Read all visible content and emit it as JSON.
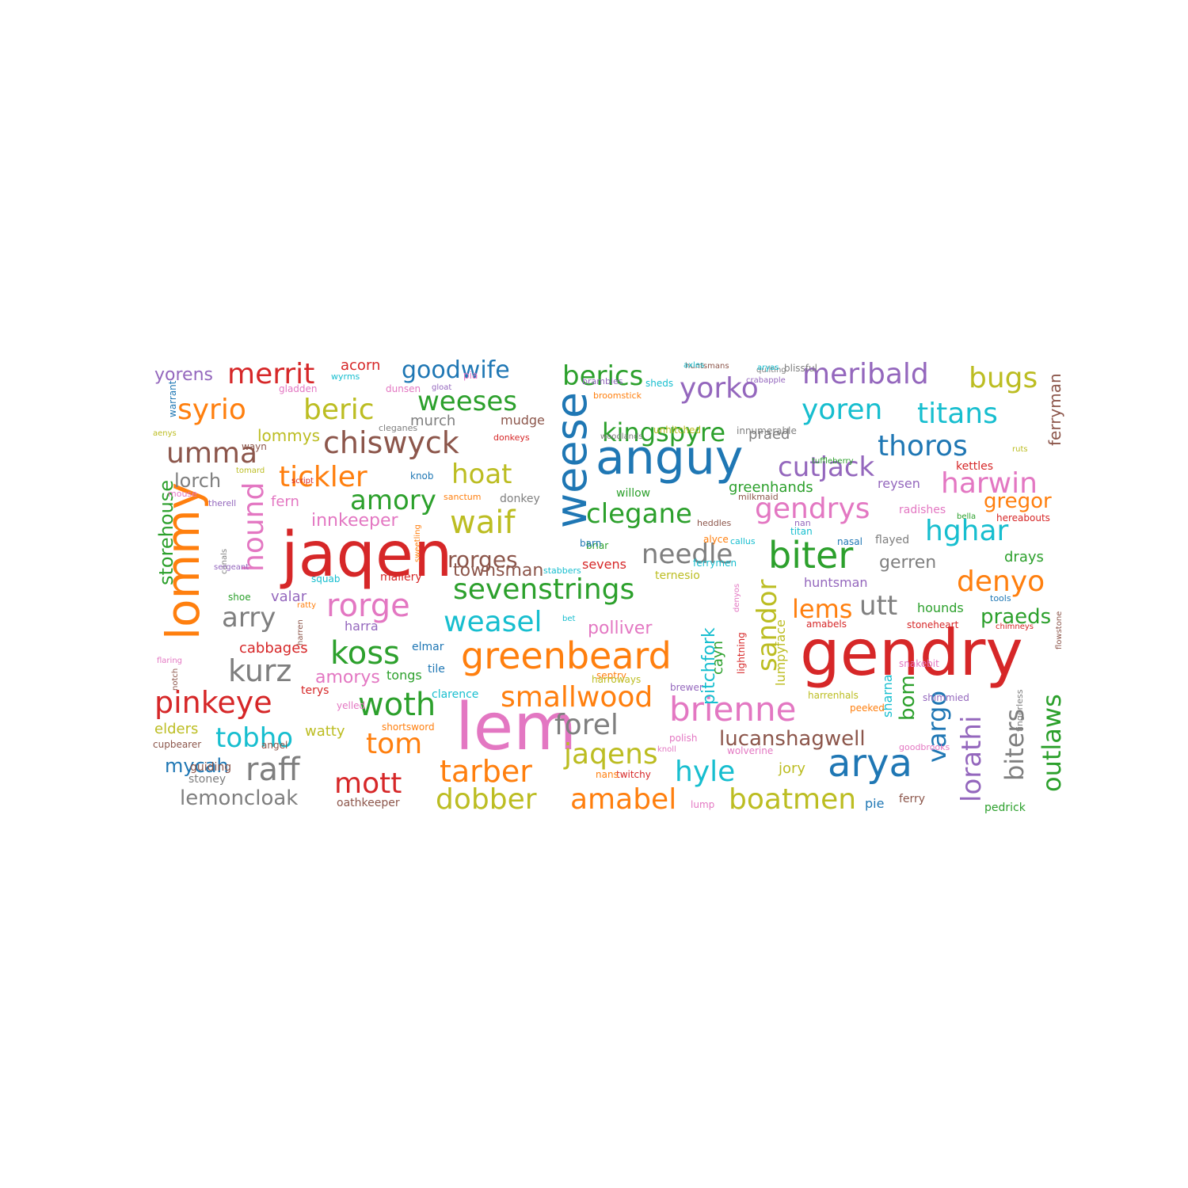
{
  "palette": {
    "blue": "#1f77b4",
    "orange": "#ff7f0e",
    "green": "#2ca02c",
    "red": "#d62728",
    "purple": "#9467bd",
    "brown": "#8c564b",
    "pink": "#e377c2",
    "gray": "#7f7f7f",
    "olive": "#bcbd22",
    "cyan": "#17becf"
  },
  "words": [
    {
      "text": "gendry",
      "color": "red"
    },
    {
      "text": "jaqen",
      "color": "red"
    },
    {
      "text": "lem",
      "color": "pink"
    },
    {
      "text": "weese",
      "color": "blue"
    },
    {
      "text": "lommy",
      "color": "orange"
    },
    {
      "text": "anguy",
      "color": "blue"
    },
    {
      "text": "arya",
      "color": "blue"
    },
    {
      "text": "greenbeard",
      "color": "orange"
    },
    {
      "text": "biter",
      "color": "green"
    },
    {
      "text": "brienne",
      "color": "pink"
    },
    {
      "text": "sevenstrings",
      "color": "green"
    },
    {
      "text": "chiswyck",
      "color": "brown"
    },
    {
      "text": "rorge",
      "color": "pink"
    },
    {
      "text": "waif",
      "color": "olive"
    },
    {
      "text": "yoren",
      "color": "cyan"
    },
    {
      "text": "yorko",
      "color": "purple"
    },
    {
      "text": "meribald",
      "color": "purple"
    },
    {
      "text": "thoros",
      "color": "blue"
    },
    {
      "text": "syrio",
      "color": "orange"
    },
    {
      "text": "beric",
      "color": "olive"
    },
    {
      "text": "merrit",
      "color": "red"
    },
    {
      "text": "woth",
      "color": "green"
    },
    {
      "text": "raff",
      "color": "gray"
    },
    {
      "text": "kurz",
      "color": "gray"
    },
    {
      "text": "pinkeye",
      "color": "red"
    },
    {
      "text": "koss",
      "color": "green"
    },
    {
      "text": "tarber",
      "color": "orange"
    },
    {
      "text": "dobber",
      "color": "olive"
    },
    {
      "text": "amabel",
      "color": "orange"
    },
    {
      "text": "boatmen",
      "color": "olive"
    },
    {
      "text": "hyle",
      "color": "cyan"
    },
    {
      "text": "jaqens",
      "color": "olive"
    },
    {
      "text": "forel",
      "color": "gray"
    },
    {
      "text": "smallwood",
      "color": "orange"
    },
    {
      "text": "weasel",
      "color": "cyan"
    },
    {
      "text": "needle",
      "color": "gray"
    },
    {
      "text": "clegane",
      "color": "green"
    },
    {
      "text": "kingspyre",
      "color": "green"
    },
    {
      "text": "berics",
      "color": "green"
    },
    {
      "text": "weeses",
      "color": "green"
    },
    {
      "text": "goodwife",
      "color": "blue"
    },
    {
      "text": "tickler",
      "color": "orange"
    },
    {
      "text": "hoat",
      "color": "olive"
    },
    {
      "text": "amory",
      "color": "green"
    },
    {
      "text": "umma",
      "color": "brown"
    },
    {
      "text": "arry",
      "color": "gray"
    },
    {
      "text": "tom",
      "color": "orange"
    },
    {
      "text": "mott",
      "color": "red"
    },
    {
      "text": "tobho",
      "color": "cyan"
    },
    {
      "text": "hound",
      "color": "pink"
    },
    {
      "text": "cutjack",
      "color": "purple"
    },
    {
      "text": "gendrys",
      "color": "pink"
    },
    {
      "text": "hghar",
      "color": "cyan"
    },
    {
      "text": "harwin",
      "color": "pink"
    },
    {
      "text": "titans",
      "color": "cyan"
    },
    {
      "text": "bugs",
      "color": "olive"
    },
    {
      "text": "denyo",
      "color": "orange"
    },
    {
      "text": "utt",
      "color": "gray"
    },
    {
      "text": "lems",
      "color": "orange"
    },
    {
      "text": "praeds",
      "color": "green"
    },
    {
      "text": "rorges",
      "color": "brown"
    },
    {
      "text": "lemoncloak",
      "color": "gray"
    },
    {
      "text": "mycah",
      "color": "blue"
    },
    {
      "text": "sandor",
      "color": "olive"
    },
    {
      "text": "vargo",
      "color": "blue"
    },
    {
      "text": "lorathi",
      "color": "purple"
    },
    {
      "text": "biters",
      "color": "gray"
    },
    {
      "text": "outlaws",
      "color": "green"
    },
    {
      "text": "bom",
      "color": "green"
    },
    {
      "text": "lucanshagwell",
      "color": "brown"
    },
    {
      "text": "storehouse",
      "color": "green"
    },
    {
      "text": "lorch",
      "color": "gray"
    },
    {
      "text": "gregor",
      "color": "orange"
    },
    {
      "text": "ferryman",
      "color": "brown"
    },
    {
      "text": "polliver",
      "color": "pink"
    },
    {
      "text": "innkeeper",
      "color": "pink"
    },
    {
      "text": "townsman",
      "color": "brown"
    },
    {
      "text": "gerren",
      "color": "gray"
    },
    {
      "text": "yorens",
      "color": "purple"
    },
    {
      "text": "acorn",
      "color": "red"
    },
    {
      "text": "lommys",
      "color": "olive"
    },
    {
      "text": "amorys",
      "color": "pink"
    },
    {
      "text": "cabbages",
      "color": "red"
    },
    {
      "text": "elders",
      "color": "olive"
    },
    {
      "text": "watty",
      "color": "olive"
    },
    {
      "text": "harra",
      "color": "purple"
    },
    {
      "text": "valar",
      "color": "purple"
    },
    {
      "text": "fern",
      "color": "pink"
    },
    {
      "text": "tongs",
      "color": "green"
    },
    {
      "text": "murch",
      "color": "gray"
    },
    {
      "text": "mudge",
      "color": "brown"
    },
    {
      "text": "pitchfork",
      "color": "cyan"
    },
    {
      "text": "cayn",
      "color": "green"
    },
    {
      "text": "lumpyface",
      "color": "olive"
    },
    {
      "text": "huntsman",
      "color": "purple"
    },
    {
      "text": "greenhands",
      "color": "green"
    },
    {
      "text": "praed",
      "color": "gray"
    },
    {
      "text": "reysen",
      "color": "purple"
    },
    {
      "text": "sevens",
      "color": "red"
    },
    {
      "text": "mallery",
      "color": "red"
    },
    {
      "text": "ternesio",
      "color": "olive"
    },
    {
      "text": "jory",
      "color": "olive"
    },
    {
      "text": "pie",
      "color": "blue"
    },
    {
      "text": "drays",
      "color": "green"
    },
    {
      "text": "sharna",
      "color": "cyan"
    },
    {
      "text": "hounds",
      "color": "green"
    },
    {
      "text": "terys",
      "color": "red"
    },
    {
      "text": "oathkeeper",
      "color": "brown"
    },
    {
      "text": "stoney",
      "color": "gray"
    },
    {
      "text": "guiding",
      "color": "brown"
    },
    {
      "text": "cupbearer",
      "color": "brown"
    },
    {
      "text": "angel",
      "color": "brown"
    },
    {
      "text": "shortsword",
      "color": "orange"
    },
    {
      "text": "yelled",
      "color": "pink"
    },
    {
      "text": "clarence",
      "color": "cyan"
    },
    {
      "text": "septry",
      "color": "orange"
    },
    {
      "text": "harroways",
      "color": "olive"
    },
    {
      "text": "elmar",
      "color": "blue"
    },
    {
      "text": "tile",
      "color": "blue"
    },
    {
      "text": "stoneheart",
      "color": "red"
    },
    {
      "text": "amabels",
      "color": "red"
    },
    {
      "text": "flayed",
      "color": "gray"
    },
    {
      "text": "nasal",
      "color": "blue"
    },
    {
      "text": "titan",
      "color": "cyan"
    },
    {
      "text": "radishes",
      "color": "pink"
    },
    {
      "text": "hereabouts",
      "color": "red"
    },
    {
      "text": "bella",
      "color": "green"
    },
    {
      "text": "kettles",
      "color": "red"
    },
    {
      "text": "ruts",
      "color": "olive"
    },
    {
      "text": "tools",
      "color": "blue"
    },
    {
      "text": "chimneys",
      "color": "red"
    },
    {
      "text": "flowstone",
      "color": "brown"
    },
    {
      "text": "shimmied",
      "color": "purple"
    },
    {
      "text": "snakebit",
      "color": "pink"
    },
    {
      "text": "harrenhals",
      "color": "olive"
    },
    {
      "text": "peeked",
      "color": "orange"
    },
    {
      "text": "goodbrooks",
      "color": "pink"
    },
    {
      "text": "fingerless",
      "color": "gray"
    },
    {
      "text": "ferry",
      "color": "brown"
    },
    {
      "text": "pedrick",
      "color": "green"
    },
    {
      "text": "brewer",
      "color": "purple"
    },
    {
      "text": "polish",
      "color": "pink"
    },
    {
      "text": "knoll",
      "color": "pink"
    },
    {
      "text": "wolverine",
      "color": "pink"
    },
    {
      "text": "twitchy",
      "color": "red"
    },
    {
      "text": "nans",
      "color": "orange"
    },
    {
      "text": "lump",
      "color": "pink"
    },
    {
      "text": "lightning",
      "color": "red"
    },
    {
      "text": "denyos",
      "color": "pink"
    },
    {
      "text": "bet",
      "color": "cyan"
    },
    {
      "text": "stabbers",
      "color": "cyan"
    },
    {
      "text": "briar",
      "color": "green"
    },
    {
      "text": "barn",
      "color": "blue"
    },
    {
      "text": "callus",
      "color": "cyan"
    },
    {
      "text": "alyce",
      "color": "orange"
    },
    {
      "text": "nan",
      "color": "purple"
    },
    {
      "text": "ferrymen",
      "color": "cyan"
    },
    {
      "text": "heddles",
      "color": "brown"
    },
    {
      "text": "milkmaid",
      "color": "brown"
    },
    {
      "text": "tuffleberry",
      "color": "green"
    },
    {
      "text": "woodlands",
      "color": "gray"
    },
    {
      "text": "willow",
      "color": "green"
    },
    {
      "text": "innumerable",
      "color": "gray"
    },
    {
      "text": "unhitched",
      "color": "olive"
    },
    {
      "text": "blissful",
      "color": "gray"
    },
    {
      "text": "huntsmans",
      "color": "brown"
    },
    {
      "text": "quilting",
      "color": "gray"
    },
    {
      "text": "axles",
      "color": "cyan"
    },
    {
      "text": "broomstick",
      "color": "orange"
    },
    {
      "text": "crabapple",
      "color": "purple"
    },
    {
      "text": "aryas",
      "color": "cyan"
    },
    {
      "text": "brambles",
      "color": "purple"
    },
    {
      "text": "sheds",
      "color": "cyan"
    },
    {
      "text": "pia",
      "color": "pink"
    },
    {
      "text": "dunsen",
      "color": "pink"
    },
    {
      "text": "gloat",
      "color": "purple"
    },
    {
      "text": "gladden",
      "color": "pink"
    },
    {
      "text": "wyrms",
      "color": "cyan"
    },
    {
      "text": "warrant",
      "color": "blue"
    },
    {
      "text": "aenys",
      "color": "olive"
    },
    {
      "text": "cleganes",
      "color": "gray"
    },
    {
      "text": "donkeys",
      "color": "red"
    },
    {
      "text": "wayn",
      "color": "brown"
    },
    {
      "text": "knob",
      "color": "blue"
    },
    {
      "text": "tomard",
      "color": "olive"
    },
    {
      "text": "script",
      "color": "red"
    },
    {
      "text": "mouse",
      "color": "pink"
    },
    {
      "text": "therell",
      "color": "purple"
    },
    {
      "text": "sanctum",
      "color": "orange"
    },
    {
      "text": "donkey",
      "color": "gray"
    },
    {
      "text": "sweetling",
      "color": "orange"
    },
    {
      "text": "canals",
      "color": "gray"
    },
    {
      "text": "sergeant",
      "color": "purple"
    },
    {
      "text": "squab",
      "color": "cyan"
    },
    {
      "text": "shoe",
      "color": "green"
    },
    {
      "text": "ratty",
      "color": "orange"
    },
    {
      "text": "harren",
      "color": "brown"
    },
    {
      "text": "flaring",
      "color": "pink"
    },
    {
      "text": "notch",
      "color": "brown"
    }
  ]
}
